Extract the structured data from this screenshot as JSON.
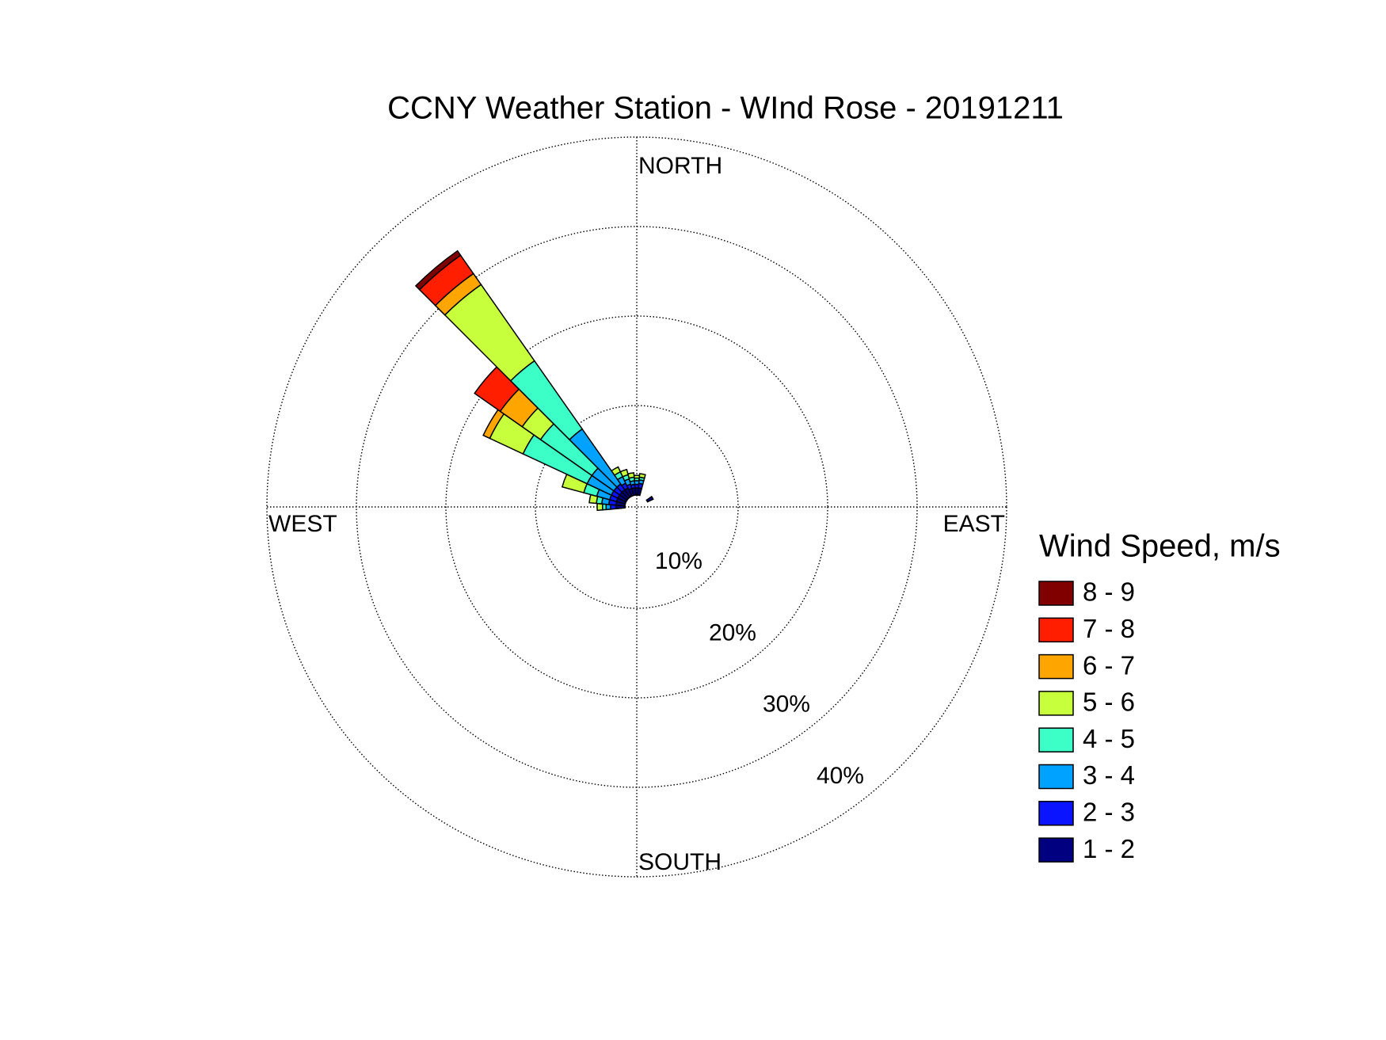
{
  "chart_data": {
    "type": "wind_rose",
    "title": "CCNY Weather Station - WInd Rose - 20191211",
    "direction_labels": {
      "north": "NORTH",
      "south": "SOUTH",
      "east": "EAST",
      "west": "WEST"
    },
    "legend_title": "Wind Speed, m/s",
    "x": [
      0,
      10,
      60,
      270,
      280,
      290,
      300,
      310,
      320,
      330,
      340,
      350
    ],
    "rlim": [
      0,
      40
    ],
    "rticks": [
      {
        "value": 10,
        "label": "10%"
      },
      {
        "value": 20,
        "label": "20%"
      },
      {
        "value": 30,
        "label": "30%"
      },
      {
        "value": 40,
        "label": "40%"
      }
    ],
    "grid": true,
    "series": [
      {
        "name": "1 - 2",
        "color": "#000080",
        "values": [
          0.8,
          0.8,
          0.7,
          1,
          1,
          1,
          1,
          1,
          1,
          1,
          0.8,
          0.8
        ]
      },
      {
        "name": "2 - 3",
        "color": "#0a14ff",
        "values": [
          0.4,
          0.5,
          0,
          0.6,
          0.8,
          0.8,
          0.8,
          0.8,
          0.8,
          0.6,
          0.5,
          0.4
        ]
      },
      {
        "name": "3 - 4",
        "color": "#00a2ff",
        "values": [
          0.4,
          0.4,
          0,
          0.5,
          0.8,
          1.5,
          3,
          3,
          7.5,
          0.8,
          0.6,
          0.4
        ]
      },
      {
        "name": "4 - 5",
        "color": "#3cffc8",
        "values": [
          0.3,
          0.3,
          0,
          0.4,
          0.6,
          1.5,
          7.9,
          7,
          9.3,
          0.6,
          0.5,
          0.4
        ]
      },
      {
        "name": "5 - 6",
        "color": "#c8ff3c",
        "values": [
          0.3,
          0.4,
          0,
          0.6,
          0.8,
          2.5,
          4.1,
          2.5,
          10.4,
          0.6,
          0.6,
          0.5
        ]
      },
      {
        "name": "6 - 7",
        "color": "#ffa500",
        "values": [
          0,
          0,
          0,
          0,
          0,
          0,
          0.8,
          3,
          1.5,
          0,
          0,
          0
        ]
      },
      {
        "name": "7 - 8",
        "color": "#ff1e00",
        "values": [
          0,
          0,
          0,
          0,
          0,
          0,
          0,
          3.5,
          2.5,
          0,
          0,
          0
        ]
      },
      {
        "name": "8 - 9",
        "color": "#800000",
        "values": [
          0,
          0,
          0,
          0,
          0,
          0,
          0,
          0,
          0.6,
          0,
          0,
          0
        ]
      }
    ]
  }
}
